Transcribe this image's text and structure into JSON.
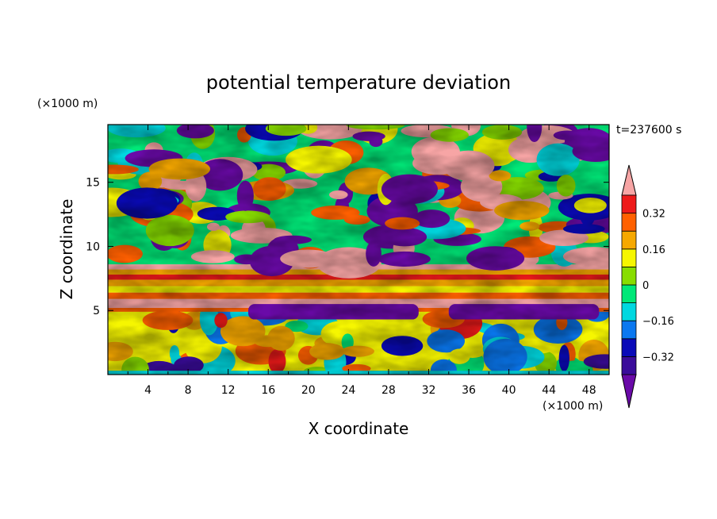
{
  "chart_data": {
    "type": "heatmap",
    "title": "potential temperature deviation",
    "xlabel": "X coordinate",
    "ylabel": "Z coordinate",
    "x_unit": "(×1000 m)",
    "y_unit": "(×1000 m)",
    "time_label": "t=237600 s",
    "xlim": [
      0,
      50
    ],
    "ylim": [
      0,
      19.5
    ],
    "x_ticks": [
      "4",
      "8",
      "12",
      "16",
      "20",
      "24",
      "28",
      "32",
      "36",
      "40",
      "44",
      "48"
    ],
    "y_ticks": [
      "5",
      "10",
      "15"
    ],
    "colorbar": {
      "levels": [
        -0.4,
        -0.32,
        -0.24,
        -0.16,
        -0.08,
        0,
        0.08,
        0.16,
        0.24,
        0.32,
        0.4
      ],
      "tick_labels": [
        "0.32",
        "0.16",
        "0",
        "−0.16",
        "−0.32"
      ],
      "tick_values": [
        0.32,
        0.16,
        0,
        -0.16,
        -0.32
      ],
      "colors": [
        "#6a0aa8",
        "#3a0c9a",
        "#0a0ab8",
        "#0a78f0",
        "#00d8e0",
        "#00e878",
        "#88dd00",
        "#f6f600",
        "#f6a800",
        "#ff6000",
        "#ee1a1a",
        "#f7a5a5"
      ],
      "extend": "both"
    },
    "layers": [
      {
        "z": [
          0,
          5
        ],
        "pattern": "convective turbulence, mixed warm and cold anomalies"
      },
      {
        "z": [
          5,
          8.5
        ],
        "pattern": "alternating warm and cold horizontal bands"
      },
      {
        "z": [
          8.5,
          19.5
        ],
        "pattern": "large patches of strong warm and cold anomalies"
      }
    ]
  }
}
